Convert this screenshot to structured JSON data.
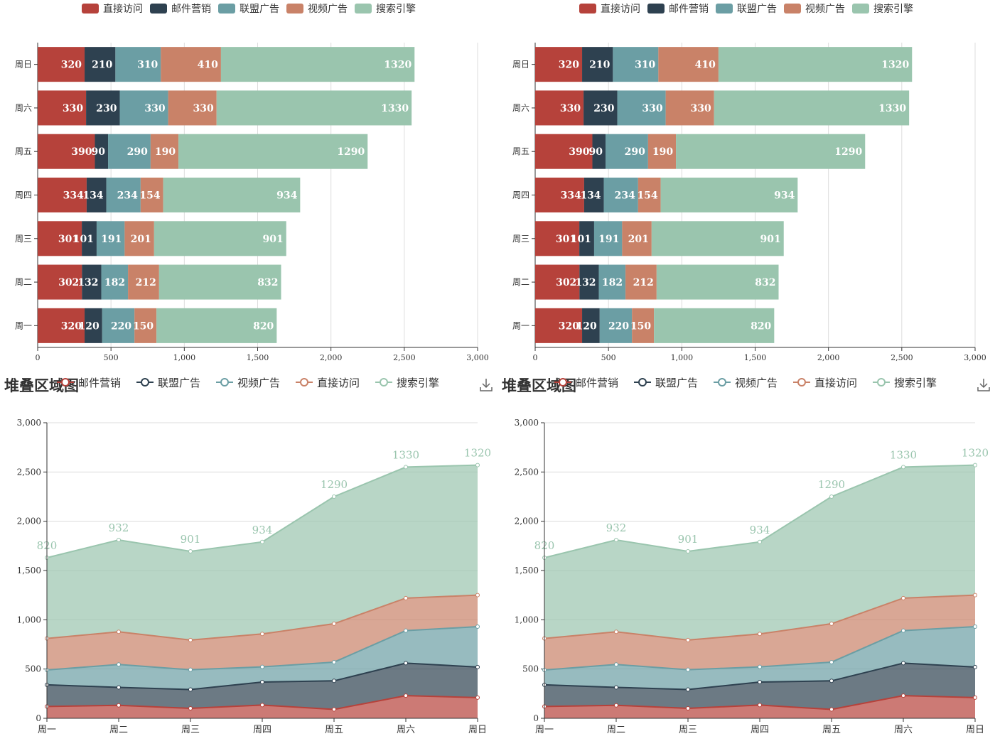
{
  "colors": {
    "direct": "#b6423b",
    "email": "#2e4150",
    "union": "#6b9ea4",
    "video": "#c98268",
    "search": "#9ac5ae"
  },
  "toolbox": {
    "download_icon": "download-icon"
  },
  "chart_data": [
    {
      "type": "bar",
      "orientation": "horizontal",
      "stacked": true,
      "title": "",
      "categories": [
        "周一",
        "周二",
        "周三",
        "周四",
        "周五",
        "周六",
        "周日"
      ],
      "series": [
        {
          "name": "直接访问",
          "color": "#b6423b",
          "values": [
            320,
            302,
            301,
            334,
            390,
            330,
            320
          ]
        },
        {
          "name": "邮件营销",
          "color": "#2e4150",
          "values": [
            120,
            132,
            101,
            134,
            90,
            230,
            210
          ]
        },
        {
          "name": "联盟广告",
          "color": "#6b9ea4",
          "values": [
            220,
            182,
            191,
            234,
            290,
            330,
            310
          ]
        },
        {
          "name": "视频广告",
          "color": "#c98268",
          "values": [
            150,
            212,
            201,
            154,
            190,
            330,
            410
          ]
        },
        {
          "name": "搜索引擎",
          "color": "#9ac5ae",
          "values": [
            820,
            832,
            901,
            934,
            1290,
            1330,
            1320
          ]
        }
      ],
      "xlim": [
        0,
        3000
      ],
      "xticks": [
        0,
        500,
        1000,
        1500,
        2000,
        2500,
        3000
      ],
      "xtick_labels": [
        "0",
        "500",
        "1,000",
        "1,500",
        "2,000",
        "2,500",
        "3,000"
      ],
      "grid": true,
      "legend": "top"
    },
    {
      "type": "bar",
      "orientation": "horizontal",
      "stacked": true,
      "title": "",
      "categories": [
        "周一",
        "周二",
        "周三",
        "周四",
        "周五",
        "周六",
        "周日"
      ],
      "series": [
        {
          "name": "直接访问",
          "color": "#b6423b",
          "values": [
            320,
            302,
            301,
            334,
            390,
            330,
            320
          ]
        },
        {
          "name": "邮件营销",
          "color": "#2e4150",
          "values": [
            120,
            132,
            101,
            134,
            90,
            230,
            210
          ]
        },
        {
          "name": "联盟广告",
          "color": "#6b9ea4",
          "values": [
            220,
            182,
            191,
            234,
            290,
            330,
            310
          ]
        },
        {
          "name": "视频广告",
          "color": "#c98268",
          "values": [
            150,
            212,
            201,
            154,
            190,
            330,
            410
          ]
        },
        {
          "name": "搜索引擎",
          "color": "#9ac5ae",
          "values": [
            820,
            832,
            901,
            934,
            1290,
            1330,
            1320
          ]
        }
      ],
      "xlim": [
        0,
        3000
      ],
      "xticks": [
        0,
        500,
        1000,
        1500,
        2000,
        2500,
        3000
      ],
      "xtick_labels": [
        "0",
        "500",
        "1,000",
        "1,500",
        "2,000",
        "2,500",
        "3,000"
      ],
      "grid": true,
      "legend": "top"
    },
    {
      "type": "area",
      "stacked": true,
      "title": "堆叠区域图",
      "categories": [
        "周一",
        "周二",
        "周三",
        "周四",
        "周五",
        "周六",
        "周日"
      ],
      "series": [
        {
          "name": "邮件营销",
          "color": "#b6423b",
          "values": [
            120,
            132,
            101,
            134,
            90,
            230,
            210
          ]
        },
        {
          "name": "联盟广告",
          "color": "#2e4150",
          "values": [
            220,
            182,
            191,
            234,
            290,
            330,
            310
          ]
        },
        {
          "name": "视频广告",
          "color": "#6b9ea4",
          "values": [
            150,
            232,
            201,
            154,
            190,
            330,
            410
          ]
        },
        {
          "name": "直接访问",
          "color": "#c98268",
          "values": [
            320,
            332,
            301,
            334,
            390,
            330,
            320
          ]
        },
        {
          "name": "搜索引擎",
          "color": "#9ac5ae",
          "values": [
            820,
            932,
            901,
            934,
            1290,
            1330,
            1320
          ]
        }
      ],
      "point_labels_series": "搜索引擎",
      "ylim": [
        0,
        3000
      ],
      "yticks": [
        0,
        500,
        1000,
        1500,
        2000,
        2500,
        3000
      ],
      "ytick_labels": [
        "0",
        "500",
        "1,000",
        "1,500",
        "2,000",
        "2,500",
        "3,000"
      ],
      "grid": true,
      "legend": "top"
    },
    {
      "type": "area",
      "stacked": true,
      "title": "堆叠区域图",
      "categories": [
        "周一",
        "周二",
        "周三",
        "周四",
        "周五",
        "周六",
        "周日"
      ],
      "series": [
        {
          "name": "邮件营销",
          "color": "#b6423b",
          "values": [
            120,
            132,
            101,
            134,
            90,
            230,
            210
          ]
        },
        {
          "name": "联盟广告",
          "color": "#2e4150",
          "values": [
            220,
            182,
            191,
            234,
            290,
            330,
            310
          ]
        },
        {
          "name": "视频广告",
          "color": "#6b9ea4",
          "values": [
            150,
            232,
            201,
            154,
            190,
            330,
            410
          ]
        },
        {
          "name": "直接访问",
          "color": "#c98268",
          "values": [
            320,
            332,
            301,
            334,
            390,
            330,
            320
          ]
        },
        {
          "name": "搜索引擎",
          "color": "#9ac5ae",
          "values": [
            820,
            932,
            901,
            934,
            1290,
            1330,
            1320
          ]
        }
      ],
      "point_labels_series": "搜索引擎",
      "ylim": [
        0,
        3000
      ],
      "yticks": [
        0,
        500,
        1000,
        1500,
        2000,
        2500,
        3000
      ],
      "ytick_labels": [
        "0",
        "500",
        "1,000",
        "1,500",
        "2,000",
        "2,500",
        "3,000"
      ],
      "grid": true,
      "legend": "top"
    }
  ]
}
